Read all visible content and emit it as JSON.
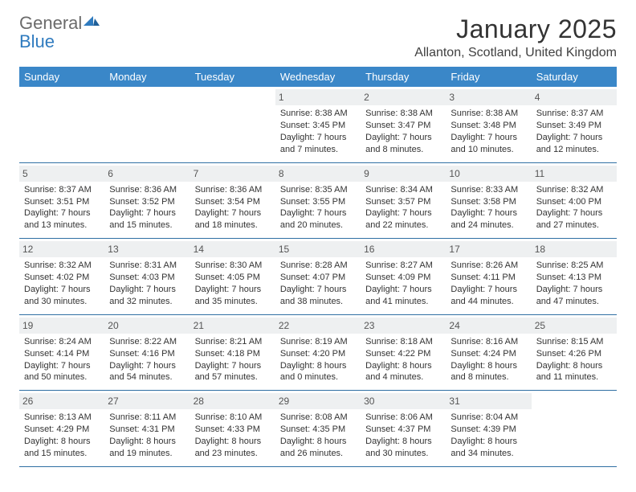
{
  "logo": {
    "general": "General",
    "blue": "Blue"
  },
  "title": "January 2025",
  "location": "Allanton, Scotland, United Kingdom",
  "colors": {
    "header_bg": "#3a87c8",
    "header_text": "#ffffff",
    "rule": "#2f6fa3",
    "daynum_bg": "#eef0f1",
    "text": "#333333",
    "logo_gray": "#6b6b6b",
    "logo_blue": "#2f7bbf"
  },
  "day_headers": [
    "Sunday",
    "Monday",
    "Tuesday",
    "Wednesday",
    "Thursday",
    "Friday",
    "Saturday"
  ],
  "weeks": [
    [
      {
        "day": "",
        "sunrise": "",
        "sunset": "",
        "daylight1": "",
        "daylight2": ""
      },
      {
        "day": "",
        "sunrise": "",
        "sunset": "",
        "daylight1": "",
        "daylight2": ""
      },
      {
        "day": "",
        "sunrise": "",
        "sunset": "",
        "daylight1": "",
        "daylight2": ""
      },
      {
        "day": "1",
        "sunrise": "Sunrise: 8:38 AM",
        "sunset": "Sunset: 3:45 PM",
        "daylight1": "Daylight: 7 hours",
        "daylight2": "and 7 minutes."
      },
      {
        "day": "2",
        "sunrise": "Sunrise: 8:38 AM",
        "sunset": "Sunset: 3:47 PM",
        "daylight1": "Daylight: 7 hours",
        "daylight2": "and 8 minutes."
      },
      {
        "day": "3",
        "sunrise": "Sunrise: 8:38 AM",
        "sunset": "Sunset: 3:48 PM",
        "daylight1": "Daylight: 7 hours",
        "daylight2": "and 10 minutes."
      },
      {
        "day": "4",
        "sunrise": "Sunrise: 8:37 AM",
        "sunset": "Sunset: 3:49 PM",
        "daylight1": "Daylight: 7 hours",
        "daylight2": "and 12 minutes."
      }
    ],
    [
      {
        "day": "5",
        "sunrise": "Sunrise: 8:37 AM",
        "sunset": "Sunset: 3:51 PM",
        "daylight1": "Daylight: 7 hours",
        "daylight2": "and 13 minutes."
      },
      {
        "day": "6",
        "sunrise": "Sunrise: 8:36 AM",
        "sunset": "Sunset: 3:52 PM",
        "daylight1": "Daylight: 7 hours",
        "daylight2": "and 15 minutes."
      },
      {
        "day": "7",
        "sunrise": "Sunrise: 8:36 AM",
        "sunset": "Sunset: 3:54 PM",
        "daylight1": "Daylight: 7 hours",
        "daylight2": "and 18 minutes."
      },
      {
        "day": "8",
        "sunrise": "Sunrise: 8:35 AM",
        "sunset": "Sunset: 3:55 PM",
        "daylight1": "Daylight: 7 hours",
        "daylight2": "and 20 minutes."
      },
      {
        "day": "9",
        "sunrise": "Sunrise: 8:34 AM",
        "sunset": "Sunset: 3:57 PM",
        "daylight1": "Daylight: 7 hours",
        "daylight2": "and 22 minutes."
      },
      {
        "day": "10",
        "sunrise": "Sunrise: 8:33 AM",
        "sunset": "Sunset: 3:58 PM",
        "daylight1": "Daylight: 7 hours",
        "daylight2": "and 24 minutes."
      },
      {
        "day": "11",
        "sunrise": "Sunrise: 8:32 AM",
        "sunset": "Sunset: 4:00 PM",
        "daylight1": "Daylight: 7 hours",
        "daylight2": "and 27 minutes."
      }
    ],
    [
      {
        "day": "12",
        "sunrise": "Sunrise: 8:32 AM",
        "sunset": "Sunset: 4:02 PM",
        "daylight1": "Daylight: 7 hours",
        "daylight2": "and 30 minutes."
      },
      {
        "day": "13",
        "sunrise": "Sunrise: 8:31 AM",
        "sunset": "Sunset: 4:03 PM",
        "daylight1": "Daylight: 7 hours",
        "daylight2": "and 32 minutes."
      },
      {
        "day": "14",
        "sunrise": "Sunrise: 8:30 AM",
        "sunset": "Sunset: 4:05 PM",
        "daylight1": "Daylight: 7 hours",
        "daylight2": "and 35 minutes."
      },
      {
        "day": "15",
        "sunrise": "Sunrise: 8:28 AM",
        "sunset": "Sunset: 4:07 PM",
        "daylight1": "Daylight: 7 hours",
        "daylight2": "and 38 minutes."
      },
      {
        "day": "16",
        "sunrise": "Sunrise: 8:27 AM",
        "sunset": "Sunset: 4:09 PM",
        "daylight1": "Daylight: 7 hours",
        "daylight2": "and 41 minutes."
      },
      {
        "day": "17",
        "sunrise": "Sunrise: 8:26 AM",
        "sunset": "Sunset: 4:11 PM",
        "daylight1": "Daylight: 7 hours",
        "daylight2": "and 44 minutes."
      },
      {
        "day": "18",
        "sunrise": "Sunrise: 8:25 AM",
        "sunset": "Sunset: 4:13 PM",
        "daylight1": "Daylight: 7 hours",
        "daylight2": "and 47 minutes."
      }
    ],
    [
      {
        "day": "19",
        "sunrise": "Sunrise: 8:24 AM",
        "sunset": "Sunset: 4:14 PM",
        "daylight1": "Daylight: 7 hours",
        "daylight2": "and 50 minutes."
      },
      {
        "day": "20",
        "sunrise": "Sunrise: 8:22 AM",
        "sunset": "Sunset: 4:16 PM",
        "daylight1": "Daylight: 7 hours",
        "daylight2": "and 54 minutes."
      },
      {
        "day": "21",
        "sunrise": "Sunrise: 8:21 AM",
        "sunset": "Sunset: 4:18 PM",
        "daylight1": "Daylight: 7 hours",
        "daylight2": "and 57 minutes."
      },
      {
        "day": "22",
        "sunrise": "Sunrise: 8:19 AM",
        "sunset": "Sunset: 4:20 PM",
        "daylight1": "Daylight: 8 hours",
        "daylight2": "and 0 minutes."
      },
      {
        "day": "23",
        "sunrise": "Sunrise: 8:18 AM",
        "sunset": "Sunset: 4:22 PM",
        "daylight1": "Daylight: 8 hours",
        "daylight2": "and 4 minutes."
      },
      {
        "day": "24",
        "sunrise": "Sunrise: 8:16 AM",
        "sunset": "Sunset: 4:24 PM",
        "daylight1": "Daylight: 8 hours",
        "daylight2": "and 8 minutes."
      },
      {
        "day": "25",
        "sunrise": "Sunrise: 8:15 AM",
        "sunset": "Sunset: 4:26 PM",
        "daylight1": "Daylight: 8 hours",
        "daylight2": "and 11 minutes."
      }
    ],
    [
      {
        "day": "26",
        "sunrise": "Sunrise: 8:13 AM",
        "sunset": "Sunset: 4:29 PM",
        "daylight1": "Daylight: 8 hours",
        "daylight2": "and 15 minutes."
      },
      {
        "day": "27",
        "sunrise": "Sunrise: 8:11 AM",
        "sunset": "Sunset: 4:31 PM",
        "daylight1": "Daylight: 8 hours",
        "daylight2": "and 19 minutes."
      },
      {
        "day": "28",
        "sunrise": "Sunrise: 8:10 AM",
        "sunset": "Sunset: 4:33 PM",
        "daylight1": "Daylight: 8 hours",
        "daylight2": "and 23 minutes."
      },
      {
        "day": "29",
        "sunrise": "Sunrise: 8:08 AM",
        "sunset": "Sunset: 4:35 PM",
        "daylight1": "Daylight: 8 hours",
        "daylight2": "and 26 minutes."
      },
      {
        "day": "30",
        "sunrise": "Sunrise: 8:06 AM",
        "sunset": "Sunset: 4:37 PM",
        "daylight1": "Daylight: 8 hours",
        "daylight2": "and 30 minutes."
      },
      {
        "day": "31",
        "sunrise": "Sunrise: 8:04 AM",
        "sunset": "Sunset: 4:39 PM",
        "daylight1": "Daylight: 8 hours",
        "daylight2": "and 34 minutes."
      },
      {
        "day": "",
        "sunrise": "",
        "sunset": "",
        "daylight1": "",
        "daylight2": ""
      }
    ]
  ]
}
